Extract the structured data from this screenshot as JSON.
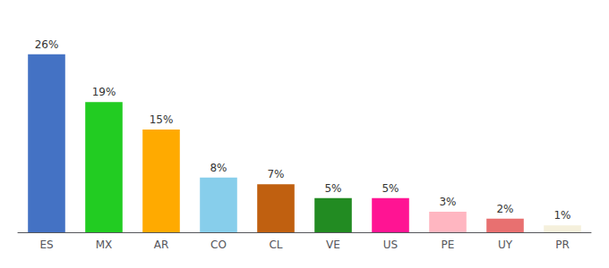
{
  "chart_data": {
    "type": "bar",
    "categories": [
      "ES",
      "MX",
      "AR",
      "CO",
      "CL",
      "VE",
      "US",
      "PE",
      "UY",
      "PR"
    ],
    "values": [
      26,
      19,
      15,
      8,
      7,
      5,
      5,
      3,
      2,
      1
    ],
    "value_labels": [
      "26%",
      "19%",
      "15%",
      "8%",
      "7%",
      "5%",
      "5%",
      "3%",
      "2%",
      "1%"
    ],
    "colors": [
      "#4472c4",
      "#22cc22",
      "#ffaa00",
      "#87ceeb",
      "#c06010",
      "#228B22",
      "#ff1493",
      "#ffb6c1",
      "#e87070",
      "#f5f0dc"
    ],
    "ylim": [
      0,
      30
    ],
    "grid": false,
    "data_labels": true,
    "tick_labels": "x"
  }
}
